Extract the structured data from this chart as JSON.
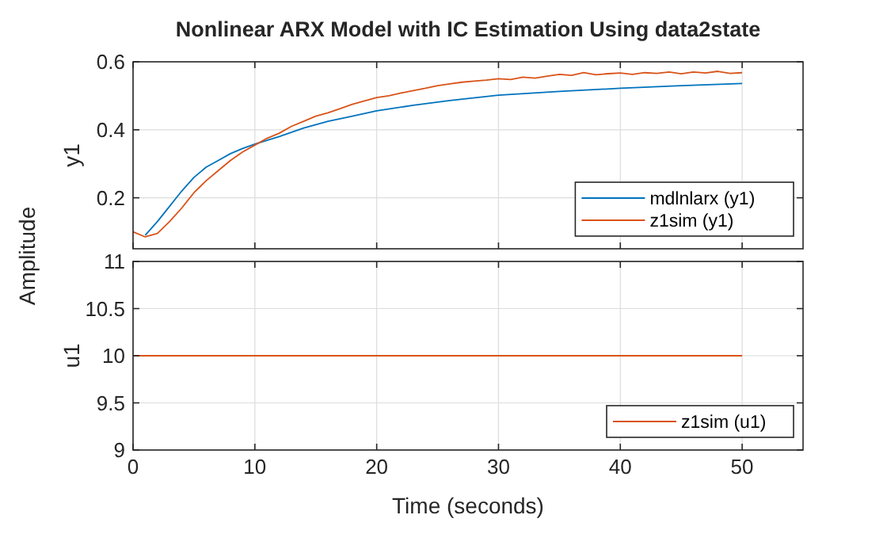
{
  "chart_data": [
    {
      "type": "line",
      "title": "Nonlinear ARX Model with IC Estimation Using data2state",
      "ylabel": "y1",
      "annotations": [
        "Amplitude"
      ],
      "xlim": [
        0,
        55
      ],
      "xticks": [
        {
          "value": 0,
          "label": null
        },
        {
          "value": 10,
          "label": null
        },
        {
          "value": 20,
          "label": null
        },
        {
          "value": 30,
          "label": null
        },
        {
          "value": 40,
          "label": null
        },
        {
          "value": 50,
          "label": null
        }
      ],
      "ylim": [
        0.05,
        0.6
      ],
      "yticks": [
        0.2,
        0.4,
        0.6
      ],
      "grid": true,
      "legend": "bottom right",
      "tick_labels": "y",
      "series": [
        {
          "name": "mdlnlarx (y1)",
          "color": "#0072bd",
          "x": [
            1,
            2,
            3,
            4,
            5,
            6,
            7,
            8,
            9,
            10,
            12,
            14,
            16,
            18,
            20,
            23,
            26,
            30,
            35,
            40,
            45,
            50
          ],
          "values": [
            0.09,
            0.13,
            0.175,
            0.22,
            0.26,
            0.29,
            0.31,
            0.33,
            0.345,
            0.358,
            0.38,
            0.405,
            0.425,
            0.44,
            0.456,
            0.472,
            0.486,
            0.502,
            0.513,
            0.522,
            0.53,
            0.536
          ]
        },
        {
          "name": "z1sim (y1)",
          "color": "#d95319",
          "x": [
            0,
            1,
            2,
            3,
            4,
            5,
            6,
            7,
            8,
            9,
            10,
            11,
            12,
            13,
            14,
            15,
            16,
            17,
            18,
            19,
            20,
            21,
            22,
            23,
            24,
            25,
            26,
            27,
            28,
            29,
            30,
            31,
            32,
            33,
            34,
            35,
            36,
            37,
            38,
            39,
            40,
            41,
            42,
            43,
            44,
            45,
            46,
            47,
            48,
            49,
            50
          ],
          "values": [
            0.1,
            0.085,
            0.095,
            0.13,
            0.17,
            0.215,
            0.25,
            0.28,
            0.31,
            0.335,
            0.355,
            0.375,
            0.39,
            0.41,
            0.425,
            0.44,
            0.45,
            0.462,
            0.475,
            0.485,
            0.495,
            0.5,
            0.508,
            0.515,
            0.522,
            0.53,
            0.535,
            0.54,
            0.543,
            0.546,
            0.55,
            0.548,
            0.555,
            0.552,
            0.558,
            0.563,
            0.56,
            0.568,
            0.562,
            0.565,
            0.567,
            0.563,
            0.568,
            0.566,
            0.57,
            0.565,
            0.57,
            0.567,
            0.572,
            0.566,
            0.568
          ]
        }
      ]
    },
    {
      "type": "line",
      "ylabel": "u1",
      "xlabel": "Time (seconds)",
      "xlim": [
        0,
        55
      ],
      "xticks": [
        0,
        10,
        20,
        30,
        40,
        50
      ],
      "ylim": [
        9,
        11
      ],
      "yticks": [
        9,
        9.5,
        10,
        10.5,
        11
      ],
      "grid": true,
      "legend": "bottom right",
      "series": [
        {
          "name": "z1sim (u1)",
          "color": "#d95319",
          "x": [
            0,
            50
          ],
          "values": [
            10,
            10
          ]
        }
      ]
    }
  ]
}
